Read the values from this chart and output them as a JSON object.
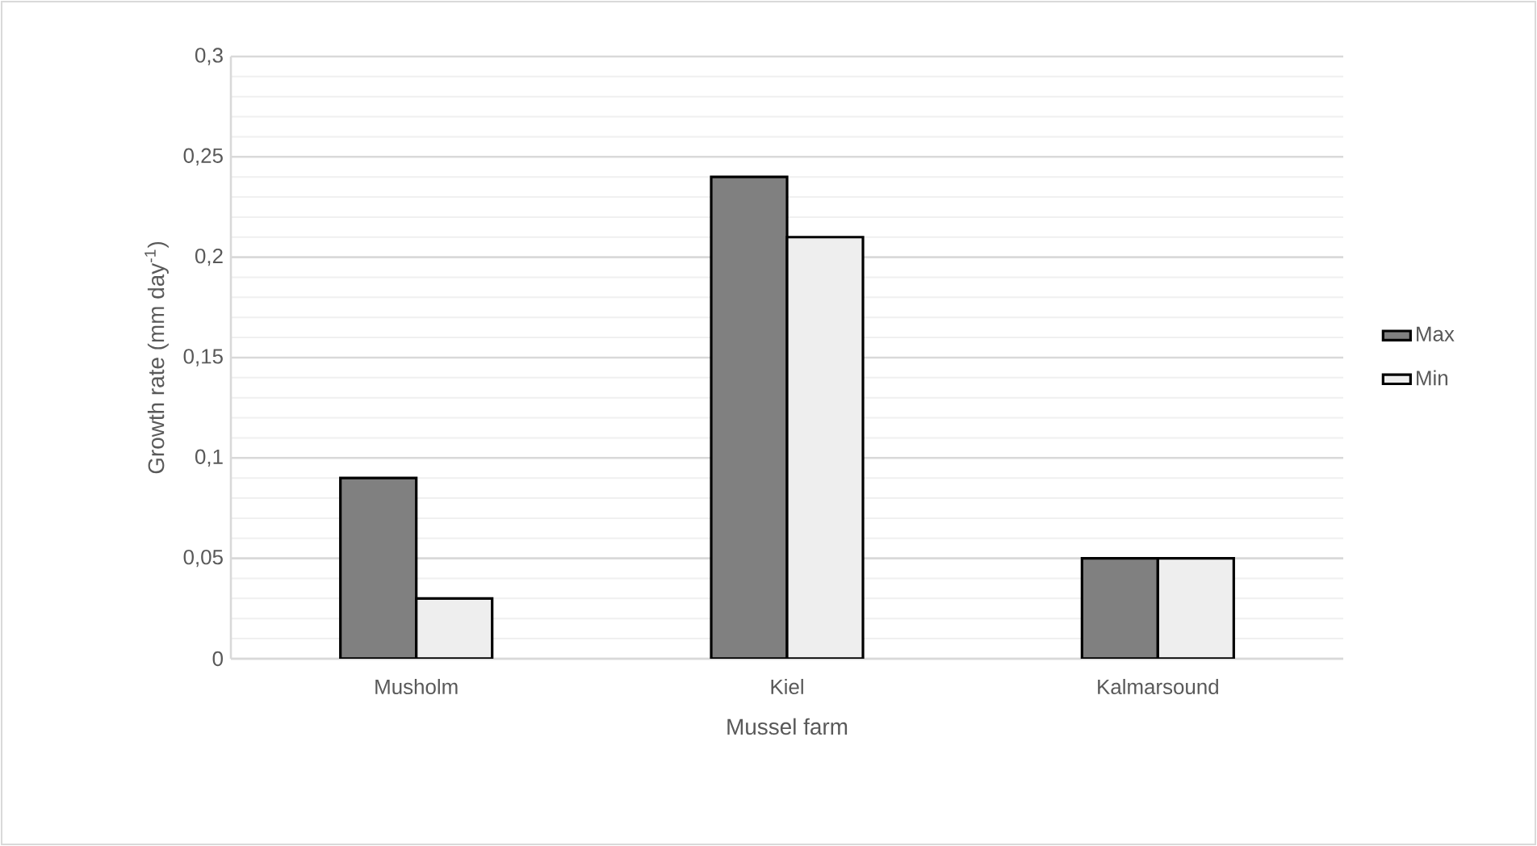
{
  "chart_data": {
    "type": "bar",
    "xlabel": "Mussel farm",
    "ylabel": "Growth rate (mm day$^{-1}$)",
    "categories": [
      "Musholm",
      "Kiel",
      "Kalmarsound"
    ],
    "series": [
      {
        "name": "Max",
        "color": "#808080",
        "values": [
          0.09,
          0.24,
          0.05
        ]
      },
      {
        "name": "Min",
        "color": "#eeeeee",
        "values": [
          0.03,
          0.21,
          0.05
        ]
      }
    ],
    "ylim": [
      0,
      0.3
    ],
    "yticks": [
      0,
      {
        "value": 0.05,
        "label": "0,05"
      },
      {
        "value": 0.1,
        "label": "0,1"
      },
      {
        "value": 0.15,
        "label": "0,15"
      },
      {
        "value": 0.2,
        "label": "0,2"
      },
      {
        "value": 0.25,
        "label": "0,25"
      },
      {
        "value": 0.3,
        "label": "0,3"
      }
    ],
    "grid": "y",
    "legend": "right"
  }
}
